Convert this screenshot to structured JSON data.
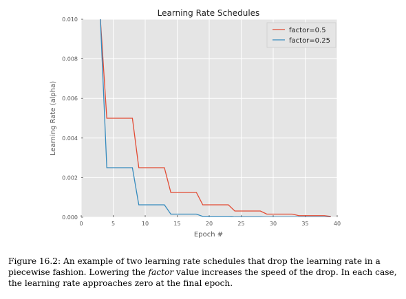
{
  "chart_data": {
    "type": "line",
    "title": "Learning Rate Schedules",
    "xlabel": "Epoch #",
    "ylabel": "Learning Rate (alpha)",
    "xlim": [
      0,
      40
    ],
    "ylim": [
      0,
      0.01
    ],
    "xticks": [
      "0",
      "5",
      "10",
      "15",
      "20",
      "25",
      "30",
      "35",
      "40"
    ],
    "yticks": [
      "0.000",
      "0.002",
      "0.004",
      "0.006",
      "0.008",
      "0.010"
    ],
    "grid": true,
    "legend_position": "top-right",
    "series": [
      {
        "name": "factor=0.5",
        "color": "#e24a33",
        "x": [
          3,
          4,
          4,
          8,
          9,
          9,
          13,
          14,
          14,
          18,
          19,
          19,
          23,
          24,
          24,
          28,
          29,
          29,
          33,
          34,
          34,
          38,
          39
        ],
        "y": [
          0.01,
          0.005,
          0.005,
          0.005,
          0.0025,
          0.0025,
          0.0025,
          0.00125,
          0.00125,
          0.00125,
          0.000625,
          0.000625,
          0.000625,
          0.0003125,
          0.0003125,
          0.0003125,
          0.00015625,
          0.00015625,
          0.00015625,
          7.8e-05,
          7.8e-05,
          7.8e-05,
          4e-05
        ]
      },
      {
        "name": "factor=0.25",
        "color": "#348abd",
        "x": [
          3,
          4,
          4,
          8,
          9,
          9,
          13,
          14,
          14,
          18,
          19,
          19,
          23,
          24,
          24,
          28,
          29,
          39
        ],
        "y": [
          0.01,
          0.0025,
          0.0025,
          0.0025,
          0.000625,
          0.000625,
          0.000625,
          0.00015625,
          0.00015625,
          0.00015625,
          3.9e-05,
          3.9e-05,
          3.9e-05,
          1e-05,
          1e-05,
          1e-05,
          2e-06,
          2e-06
        ]
      }
    ]
  },
  "caption": {
    "part1": "Figure 16.2: An example of two learning rate schedules that drop the learning rate in a piecewise fashion. Lowering the ",
    "emph": "factor",
    "part2": " value increases the speed of the drop. In each case, the learning rate approaches zero at the final epoch."
  }
}
